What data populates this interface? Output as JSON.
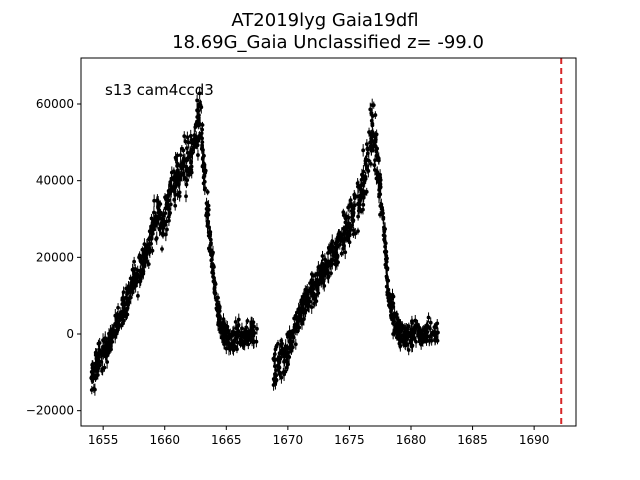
{
  "chart_data": {
    "type": "scatter",
    "title": "AT2019lyg  Gaia19dfl",
    "subtitle": "18.69G_Gaia Unclassified z= -99.0",
    "xlabel": "",
    "ylabel": "",
    "annotation": "s13 cam4ccd3",
    "xlim": [
      1653.2,
      1693.4
    ],
    "ylim": [
      -24000,
      72000
    ],
    "x_ticks": [
      1655,
      1660,
      1665,
      1670,
      1675,
      1680,
      1685,
      1690
    ],
    "y_ticks": [
      -20000,
      0,
      20000,
      40000,
      60000
    ],
    "y_tick_labels": [
      "−20000",
      "0",
      "20000",
      "40000",
      "60000"
    ],
    "grid": false,
    "marker_color": "#000000",
    "vline": {
      "x": 1692.2,
      "color": "#d62728",
      "style": "dashed"
    },
    "series": [
      {
        "segments": [
          {
            "x": [
              1654.0,
              1654.3,
              1654.6,
              1655.0,
              1655.4,
              1655.8,
              1656.2,
              1656.6,
              1657.0,
              1657.4,
              1657.8,
              1658.2,
              1658.6,
              1659.0,
              1659.4,
              1659.8,
              1660.2,
              1660.6,
              1661.0,
              1661.4,
              1661.8,
              1662.2,
              1662.6,
              1662.9,
              1663.2,
              1663.5,
              1663.8,
              1664.1,
              1664.4,
              1664.7,
              1665.0,
              1665.5,
              1666.0,
              1666.5,
              1667.0,
              1667.5
            ],
            "y": [
              -12000,
              -10000,
              -7000,
              -5000,
              -3000,
              0,
              3000,
              6000,
              10000,
              13000,
              15000,
              19000,
              22000,
              27000,
              31000,
              28000,
              33000,
              38000,
              42000,
              43000,
              44000,
              47000,
              53000,
              55000,
              42000,
              30000,
              20000,
              12000,
              5000,
              1000,
              -1000,
              -2000,
              0,
              -1500,
              1000,
              0
            ],
            "spread": [
              5000,
              5000,
              4500,
              4500,
              4000,
              4000,
              4000,
              4500,
              4500,
              4500,
              4500,
              5000,
              5000,
              5500,
              6000,
              6000,
              6000,
              6500,
              6500,
              7000,
              7000,
              7500,
              8000,
              8000,
              7000,
              6000,
              5000,
              4500,
              4000,
              3500,
              3500,
              3500,
              3500,
              3500,
              3500,
              3500
            ]
          },
          {
            "x": [
              1668.8,
              1669.2,
              1669.6,
              1670.0,
              1670.4,
              1670.8,
              1671.2,
              1671.6,
              1672.0,
              1672.4,
              1672.8,
              1673.2,
              1673.6,
              1674.0,
              1674.4,
              1674.8,
              1675.2,
              1675.6,
              1676.0,
              1676.4,
              1676.8,
              1677.1,
              1677.4,
              1677.7,
              1678.0,
              1678.3,
              1678.6,
              1678.9,
              1679.2,
              1679.6,
              1680.0,
              1680.5,
              1681.0,
              1681.5,
              1682.2
            ],
            "y": [
              -9000,
              -8000,
              -6000,
              -5000,
              0,
              4000,
              7000,
              9000,
              12000,
              13000,
              16000,
              18000,
              20000,
              22000,
              25000,
              28000,
              30000,
              33000,
              36000,
              45000,
              52000,
              50000,
              40000,
              32000,
              18000,
              8000,
              4000,
              2000,
              0,
              -1000,
              0,
              500,
              -1000,
              0,
              -500
            ],
            "spread": [
              5000,
              5000,
              4500,
              4500,
              4500,
              4500,
              4500,
              5000,
              5000,
              5000,
              5000,
              5500,
              5500,
              5500,
              6000,
              6000,
              6000,
              6500,
              7000,
              8000,
              8000,
              8000,
              7000,
              6500,
              6000,
              5000,
              4500,
              4000,
              3500,
              3500,
              3500,
              3500,
              3500,
              3500,
              3500
            ]
          }
        ]
      }
    ]
  }
}
